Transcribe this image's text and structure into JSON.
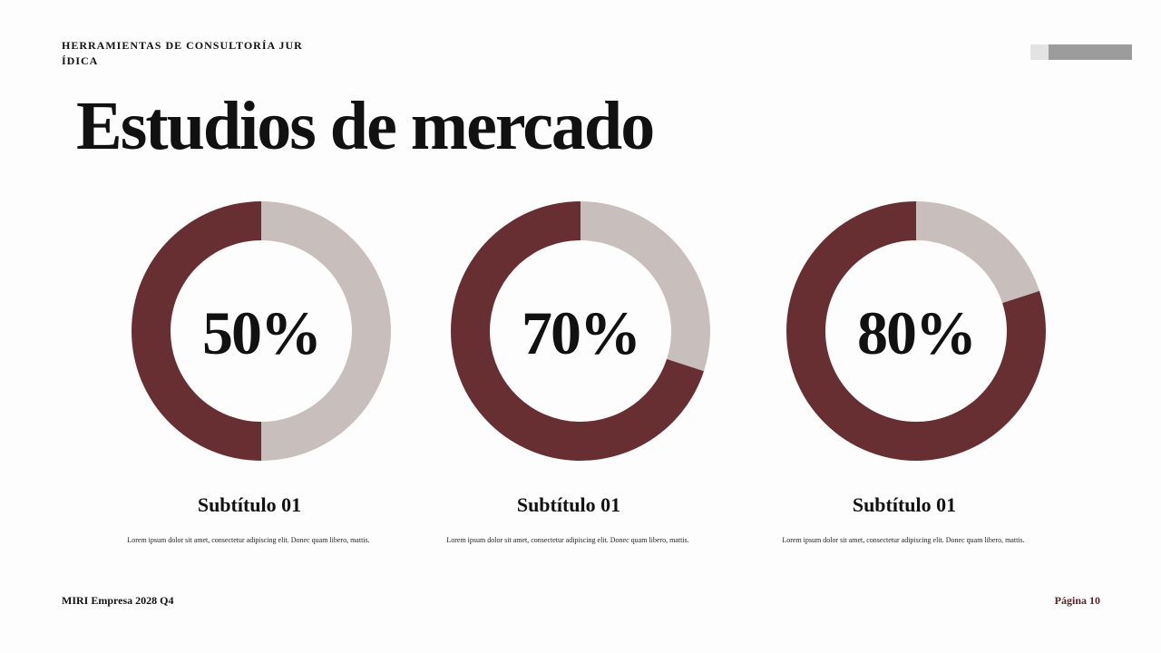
{
  "header": {
    "kicker": "HERRAMIENTAS DE CONSULTORÍA JURÍDICA",
    "title": "Estudios de mercado"
  },
  "chart_data": [
    {
      "type": "donut",
      "values": [
        50,
        50
      ],
      "value_labels": [
        "50%",
        null
      ],
      "colors": [
        "#682f32",
        "#c8bfbc"
      ],
      "subtitle": "Subtítulo 01",
      "annotation": "Lorem ipsum dolor sit amet, consectetur adipiscing elit. Donec quam libero, mattis."
    },
    {
      "type": "donut",
      "values": [
        70,
        30
      ],
      "value_labels": [
        "70%",
        null
      ],
      "colors": [
        "#682f32",
        "#c8bfbc"
      ],
      "subtitle": "Subtítulo 01",
      "annotation": "Lorem ipsum dolor sit amet, consectetur adipiscing elit. Donec quam libero, mattis."
    },
    {
      "type": "donut",
      "values": [
        80,
        20
      ],
      "value_labels": [
        "80%",
        null
      ],
      "colors": [
        "#682f32",
        "#c8bfbc"
      ],
      "subtitle": "Subtítulo 01",
      "annotation": "Lorem ipsum dolor sit amet, consectetur adipiscing elit. Donec quam libero, mattis."
    }
  ],
  "footer": {
    "left": "MIRI Empresa 2028 Q4",
    "right": "Página 10"
  }
}
